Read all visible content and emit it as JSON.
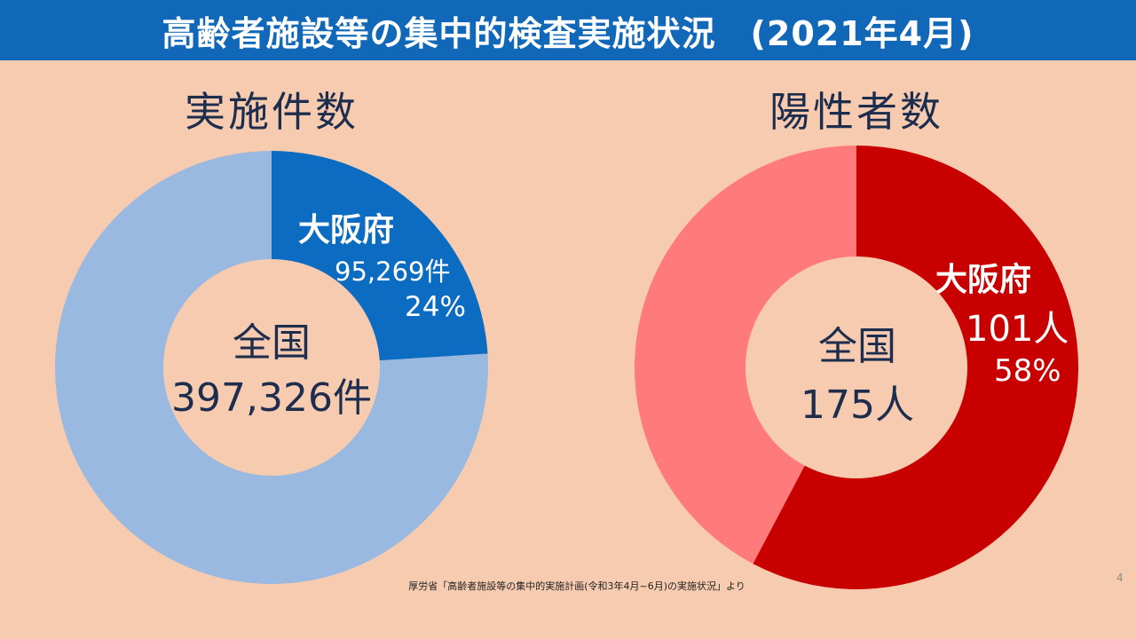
{
  "title": "高齢者施設等の集中的検査実施状況　(2021年4月)",
  "colors": {
    "title_bar": "#1168b8",
    "background": "#f7cbb0",
    "left_highlight": "#0b6cc1",
    "left_rest": "#9ab9e0",
    "right_highlight": "#c80000",
    "right_rest": "#ff7b7b"
  },
  "chart_data": [
    {
      "type": "pie",
      "donut": true,
      "title": "実施件数",
      "total_label": "全国",
      "total_value": "397,326件",
      "highlight": {
        "name": "大阪府",
        "value_label": "95,269件",
        "percent_label": "24%",
        "value": 95269
      },
      "total": 397326
    },
    {
      "type": "pie",
      "donut": true,
      "title": "陽性者数",
      "total_label": "全国",
      "total_value": "175人",
      "highlight": {
        "name": "大阪府",
        "value_label": "101人",
        "percent_label": "58%",
        "value": 101
      },
      "total": 175
    }
  ],
  "source": "厚労省「高齢者施設等の集中的実施計画(令和3年4月~6月)の実施状況」より",
  "page_number": "4"
}
